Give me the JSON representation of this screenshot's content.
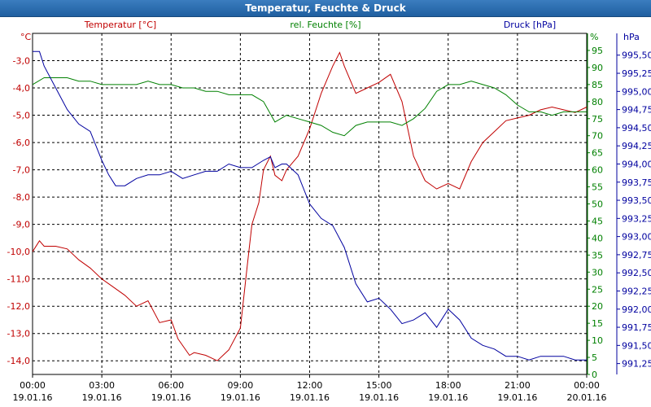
{
  "window": {
    "title": "Temperatur, Feuchte & Druck"
  },
  "colors": {
    "temp": "#c00000",
    "hum": "#008000",
    "press": "#00009f",
    "grid": "#000000"
  },
  "chart_data": {
    "type": "line",
    "title": "Temperatur, Feuchte & Druck",
    "axes": {
      "temp": {
        "unit": "°C",
        "label": "Temperatur [°C]",
        "min": -14.5,
        "max": -2.0,
        "ticks": [
          "-3,0",
          "-4,0",
          "-5,0",
          "-6,0",
          "-7,0",
          "-8,0",
          "-9,0",
          "-10,0",
          "-11,0",
          "-12,0",
          "-13,0",
          "-14,0"
        ],
        "tick_values": [
          -3,
          -4,
          -5,
          -6,
          -7,
          -8,
          -9,
          -10,
          -11,
          -12,
          -13,
          -14
        ]
      },
      "hum": {
        "unit": "%",
        "label": "rel. Feuchte [%]",
        "min": 0,
        "max": 100,
        "ticks": [
          "95",
          "90",
          "85",
          "80",
          "75",
          "70",
          "65",
          "60",
          "55",
          "50",
          "45",
          "40",
          "35",
          "30",
          "25",
          "20",
          "15",
          "10",
          "5",
          "0"
        ],
        "tick_values": [
          95,
          90,
          85,
          80,
          75,
          70,
          65,
          60,
          55,
          50,
          45,
          40,
          35,
          30,
          25,
          20,
          15,
          10,
          5,
          0
        ]
      },
      "press": {
        "unit": "hPa",
        "label": "Druck [hPa]",
        "min": 991.1,
        "max": 995.8,
        "ticks": [
          "995,50",
          "995,25",
          "995,00",
          "994,75",
          "994,50",
          "994,25",
          "994,00",
          "993,75",
          "993,50",
          "993,25",
          "993,00",
          "992,75",
          "992,50",
          "992,25",
          "992,00",
          "991,75",
          "991,50",
          "991,25"
        ],
        "tick_values": [
          995.5,
          995.25,
          995.0,
          994.75,
          994.5,
          994.25,
          994.0,
          993.75,
          993.5,
          993.25,
          993.0,
          992.75,
          992.5,
          992.25,
          992.0,
          991.75,
          991.5,
          991.25
        ]
      }
    },
    "x_ticks": [
      {
        "time": "00:00",
        "date": "19.01.16"
      },
      {
        "time": "03:00",
        "date": "19.01.16"
      },
      {
        "time": "06:00",
        "date": "19.01.16"
      },
      {
        "time": "09:00",
        "date": "19.01.16"
      },
      {
        "time": "12:00",
        "date": "19.01.16"
      },
      {
        "time": "15:00",
        "date": "19.01.16"
      },
      {
        "time": "18:00",
        "date": "19.01.16"
      },
      {
        "time": "21:00",
        "date": "19.01.16"
      },
      {
        "time": "00:00",
        "date": "20.01.16"
      }
    ],
    "x_range_hours": [
      0,
      24
    ],
    "grid": true,
    "series": [
      {
        "name": "Temperatur [°C]",
        "axis": "temp",
        "x": [
          0,
          0.3,
          0.5,
          1,
          1.5,
          2,
          2.5,
          3,
          3.5,
          4,
          4.5,
          5,
          5.5,
          6,
          6.3,
          6.8,
          7,
          7.5,
          8,
          8.5,
          9,
          9.3,
          9.5,
          9.8,
          10,
          10.3,
          10.5,
          10.8,
          11,
          11.5,
          12,
          12.5,
          13,
          13.3,
          13.5,
          14,
          14.5,
          15,
          15.5,
          16,
          16.5,
          17,
          17.5,
          18,
          18.5,
          19,
          19.5,
          20,
          20.5,
          21,
          21.5,
          22,
          22.5,
          23,
          23.5,
          24
        ],
        "y": [
          -10.0,
          -9.6,
          -9.8,
          -9.8,
          -9.9,
          -10.3,
          -10.6,
          -11.0,
          -11.3,
          -11.6,
          -12.0,
          -11.8,
          -12.6,
          -12.5,
          -13.2,
          -13.8,
          -13.7,
          -13.8,
          -14.0,
          -13.6,
          -12.8,
          -10.5,
          -9.0,
          -8.2,
          -7.0,
          -6.5,
          -7.2,
          -7.4,
          -7.0,
          -6.5,
          -5.5,
          -4.2,
          -3.2,
          -2.7,
          -3.2,
          -4.2,
          -4.0,
          -3.8,
          -3.5,
          -4.5,
          -6.5,
          -7.4,
          -7.7,
          -7.5,
          -7.7,
          -6.7,
          -6.0,
          -5.6,
          -5.2,
          -5.1,
          -5.0,
          -4.8,
          -4.7,
          -4.8,
          -4.9,
          -4.7
        ]
      },
      {
        "name": "rel. Feuchte [%]",
        "axis": "hum",
        "x": [
          0,
          0.5,
          1,
          1.5,
          2,
          2.5,
          3,
          3.5,
          4,
          4.5,
          5,
          5.5,
          6,
          6.5,
          7,
          7.5,
          8,
          8.5,
          9,
          9.5,
          10,
          10.5,
          11,
          11.5,
          12,
          12.5,
          13,
          13.5,
          14,
          14.5,
          15,
          15.5,
          16,
          16.5,
          17,
          17.5,
          18,
          18.5,
          19,
          19.5,
          20,
          20.5,
          21,
          21.5,
          22,
          22.5,
          23,
          23.5,
          24
        ],
        "y": [
          85,
          87,
          87,
          87,
          86,
          86,
          85,
          85,
          85,
          85,
          86,
          85,
          85,
          84,
          84,
          83,
          83,
          82,
          82,
          82,
          80,
          74,
          76,
          75,
          74,
          73,
          71,
          70,
          73,
          74,
          74,
          74,
          73,
          75,
          78,
          83,
          85,
          85,
          86,
          85,
          84,
          82,
          79,
          77,
          77,
          76,
          77,
          77,
          77
        ]
      },
      {
        "name": "Druck [hPa]",
        "axis": "press",
        "x": [
          0,
          0.3,
          0.5,
          1,
          1.5,
          2,
          2.5,
          3,
          3.3,
          3.6,
          4,
          4.5,
          5,
          5.5,
          6,
          6.5,
          7,
          7.5,
          8,
          8.5,
          9,
          9.5,
          10,
          10.3,
          10.5,
          10.8,
          11,
          11.5,
          12,
          12.5,
          13,
          13.5,
          14,
          14.5,
          15,
          15.5,
          16,
          16.5,
          17,
          17.5,
          18,
          18.5,
          19,
          19.5,
          20,
          20.5,
          21,
          21.5,
          22,
          22.5,
          23,
          23.5,
          24
        ],
        "y": [
          995.55,
          995.55,
          995.35,
          995.05,
          994.75,
          994.55,
          994.45,
          994.05,
          993.85,
          993.7,
          993.7,
          993.8,
          993.85,
          993.85,
          993.9,
          993.8,
          993.85,
          993.9,
          993.9,
          994.0,
          993.95,
          993.95,
          994.05,
          994.1,
          993.95,
          994.0,
          994.0,
          993.85,
          993.45,
          993.25,
          993.15,
          992.85,
          992.35,
          992.1,
          992.15,
          992.0,
          991.8,
          991.85,
          991.95,
          991.75,
          992.0,
          991.85,
          991.6,
          991.5,
          991.45,
          991.35,
          991.35,
          991.3,
          991.35,
          991.35,
          991.35,
          991.3,
          991.3
        ]
      }
    ]
  }
}
